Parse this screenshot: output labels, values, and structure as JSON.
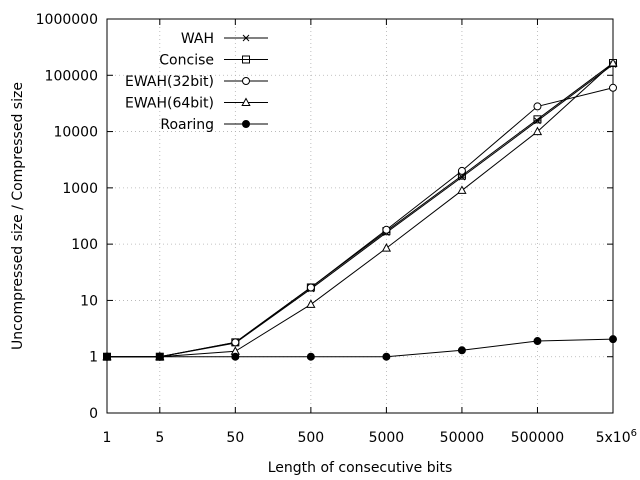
{
  "chart_data": {
    "type": "line",
    "xlabel": "Length of consecutive bits",
    "ylabel": "Uncompressed size / Compressed size",
    "x_scale": "log",
    "y_scale": "log",
    "x_ticks": [
      {
        "value": 1,
        "label": "1"
      },
      {
        "value": 5,
        "label": "5"
      },
      {
        "value": 50,
        "label": "50"
      },
      {
        "value": 500,
        "label": "500"
      },
      {
        "value": 5000,
        "label": "5000"
      },
      {
        "value": 50000,
        "label": "50000"
      },
      {
        "value": 500000,
        "label": "500000"
      },
      {
        "value": 5000000,
        "label": "5x10",
        "label_sup": "6"
      }
    ],
    "y_ticks": [
      {
        "value": 0.1,
        "label": "0"
      },
      {
        "value": 1,
        "label": "1"
      },
      {
        "value": 10,
        "label": "10"
      },
      {
        "value": 100,
        "label": "100"
      },
      {
        "value": 1000,
        "label": "1000"
      },
      {
        "value": 10000,
        "label": "10000"
      },
      {
        "value": 100000,
        "label": "100000"
      },
      {
        "value": 1000000,
        "label": "1000000"
      }
    ],
    "xlim": [
      1,
      5000000
    ],
    "ylim": [
      0.1,
      1000000
    ],
    "grid": true,
    "legend_position": "top-left",
    "x": [
      1,
      5,
      50,
      500,
      5000,
      50000,
      500000,
      5000000
    ],
    "series": [
      {
        "name": "WAH",
        "marker": "star",
        "values": [
          1,
          1,
          1.75,
          16,
          160,
          1550,
          15500,
          155000
        ]
      },
      {
        "name": "Concise",
        "marker": "square",
        "values": [
          1,
          1,
          1.8,
          17,
          170,
          1650,
          16500,
          165000
        ]
      },
      {
        "name": "EWAH(32bit)",
        "marker": "circle",
        "values": [
          1,
          1,
          1.8,
          17,
          180,
          2000,
          28000,
          60000
        ]
      },
      {
        "name": "EWAH(64bit)",
        "marker": "triangle",
        "values": [
          1,
          1,
          1.25,
          8.5,
          85,
          900,
          10000,
          165000
        ]
      },
      {
        "name": "Roaring",
        "marker": "filled-circle",
        "values": [
          1,
          1,
          1,
          1,
          1,
          1.3,
          1.9,
          2.05
        ]
      }
    ]
  }
}
